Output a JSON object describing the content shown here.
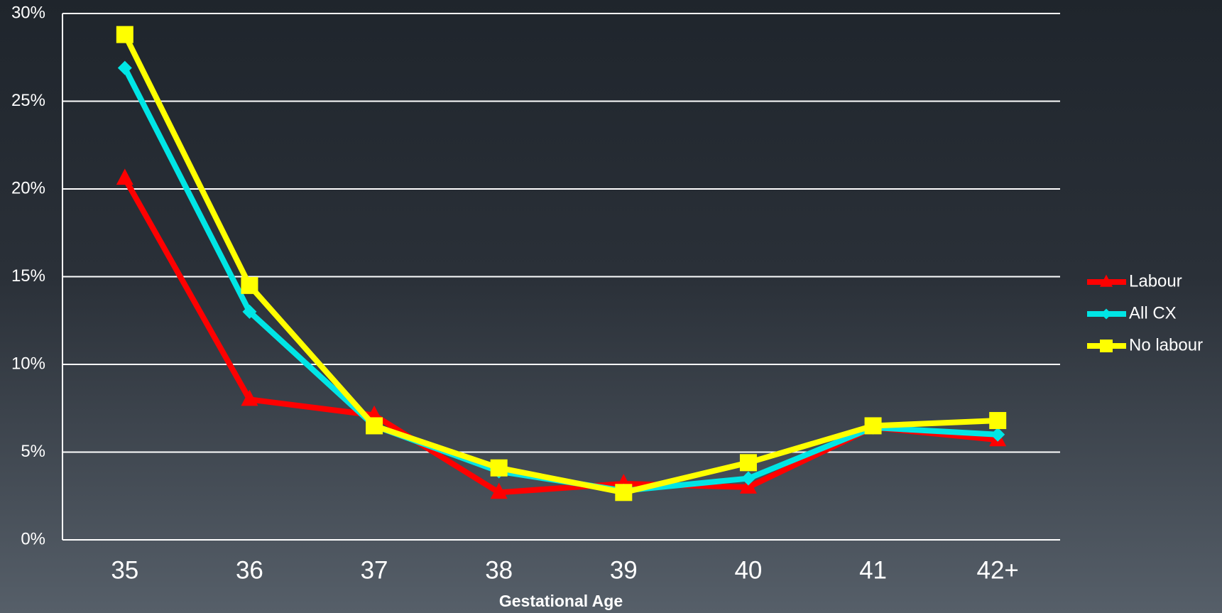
{
  "chart_data": {
    "type": "line",
    "x_label": "Gestational Age",
    "categories": [
      "35",
      "36",
      "37",
      "38",
      "39",
      "40",
      "41",
      "42+"
    ],
    "series": [
      {
        "name": "Labour",
        "color": "#ff0000",
        "marker": "triangle",
        "values": [
          20.6,
          8.0,
          7.1,
          2.7,
          3.2,
          3.0,
          6.4,
          5.7
        ]
      },
      {
        "name": "All CX",
        "color": "#00e5e5",
        "marker": "diamond",
        "values": [
          26.9,
          13.0,
          6.5,
          3.9,
          2.8,
          3.5,
          6.4,
          6.0
        ]
      },
      {
        "name": "No labour",
        "color": "#ffff00",
        "marker": "square",
        "values": [
          28.8,
          14.5,
          6.5,
          4.1,
          2.7,
          4.4,
          6.5,
          6.8
        ]
      }
    ],
    "ylim": [
      0,
      30
    ],
    "yticks": [
      {
        "value": 0,
        "label": "0%"
      },
      {
        "value": 5,
        "label": "5%"
      },
      {
        "value": 10,
        "label": "10%"
      },
      {
        "value": 15,
        "label": "15%"
      },
      {
        "value": 20,
        "label": "20%"
      },
      {
        "value": 25,
        "label": "25%"
      },
      {
        "value": 30,
        "label": "30%"
      }
    ],
    "grid": true,
    "legend": "right"
  }
}
